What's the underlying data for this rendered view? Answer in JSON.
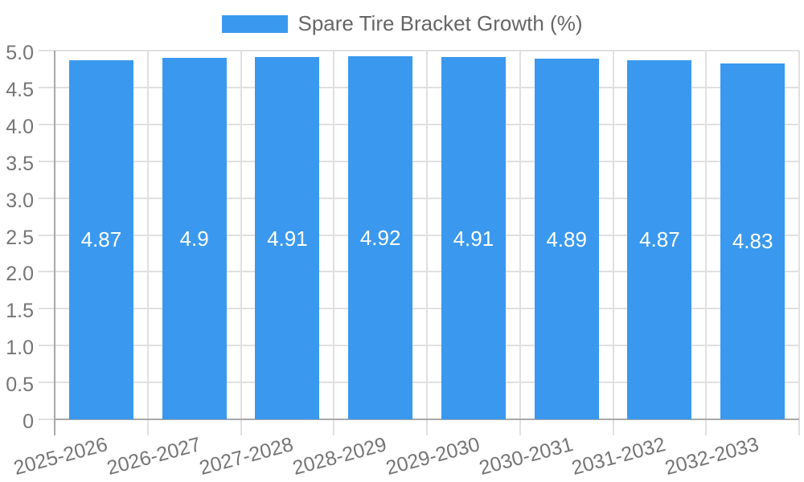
{
  "chart_data": {
    "type": "bar",
    "title": "",
    "xlabel": "",
    "ylabel": "",
    "categories": [
      "2025-2026",
      "2026-2027",
      "2027-2028",
      "2028-2029",
      "2029-2030",
      "2030-2031",
      "2031-2032",
      "2032-2033"
    ],
    "series": [
      {
        "name": "Spare Tire Bracket Growth (%)",
        "values": [
          4.87,
          4.9,
          4.91,
          4.92,
          4.91,
          4.89,
          4.87,
          4.83
        ]
      }
    ],
    "value_labels": [
      "4.87",
      "4.9",
      "4.91",
      "4.92",
      "4.91",
      "4.89",
      "4.87",
      "4.83"
    ],
    "ylim": [
      0,
      5
    ],
    "yticks": [
      0,
      0.5,
      1,
      1.5,
      2,
      2.5,
      3,
      3.5,
      4,
      4.5,
      5
    ],
    "ytick_labels": [
      "0",
      "0.5",
      "1.0",
      "1.5",
      "2.0",
      "2.5",
      "3.0",
      "3.5",
      "4.0",
      "4.5",
      "5.0"
    ],
    "grid": true,
    "legend_position": "top",
    "colors": {
      "bar": "#3A99EE",
      "grid": "#e0e0e0",
      "axis": "#a8a8a8",
      "tick_text": "#757575",
      "legend_text": "#666666",
      "value_text": "#ffffff",
      "background": "#ffffff"
    }
  }
}
